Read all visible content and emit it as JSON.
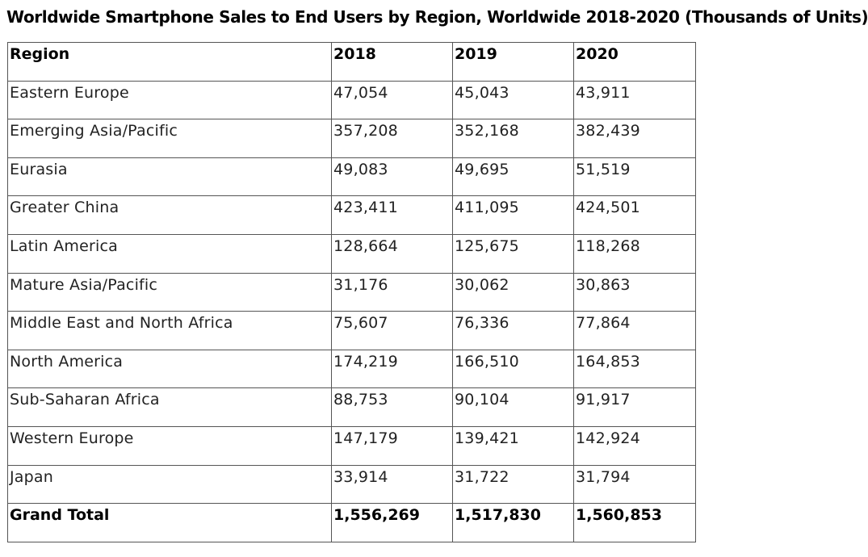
{
  "title": "Worldwide Smartphone Sales to End Users by Region, Worldwide 2018-2020 (Thousands of Units)",
  "chart_data": {
    "type": "table",
    "title": "Worldwide Smartphone Sales to End Users by Region, Worldwide 2018-2020 (Thousands of Units)",
    "columns": [
      "Region",
      "2018",
      "2019",
      "2020"
    ],
    "rows": [
      [
        "Eastern Europe",
        "47,054",
        "45,043",
        "43,911"
      ],
      [
        "Emerging Asia/Pacific",
        "357,208",
        "352,168",
        "382,439"
      ],
      [
        "Eurasia",
        "49,083",
        "49,695",
        "51,519"
      ],
      [
        "Greater China",
        "423,411",
        "411,095",
        "424,501"
      ],
      [
        "Latin America",
        "128,664",
        "125,675",
        "118,268"
      ],
      [
        "Mature Asia/Pacific",
        "31,176",
        "30,062",
        "30,863"
      ],
      [
        "Middle East and North Africa",
        "75,607",
        "76,336",
        "77,864"
      ],
      [
        "North America",
        "174,219",
        "166,510",
        "164,853"
      ],
      [
        "Sub-Saharan Africa",
        "88,753",
        "90,104",
        "91,917"
      ],
      [
        "Western Europe",
        "147,179",
        "139,421",
        "142,924"
      ],
      [
        "Japan",
        "33,914",
        "31,722",
        "31,794"
      ]
    ],
    "total_row": [
      "Grand Total",
      "1,556,269",
      "1,517,830",
      "1,560,853"
    ]
  }
}
